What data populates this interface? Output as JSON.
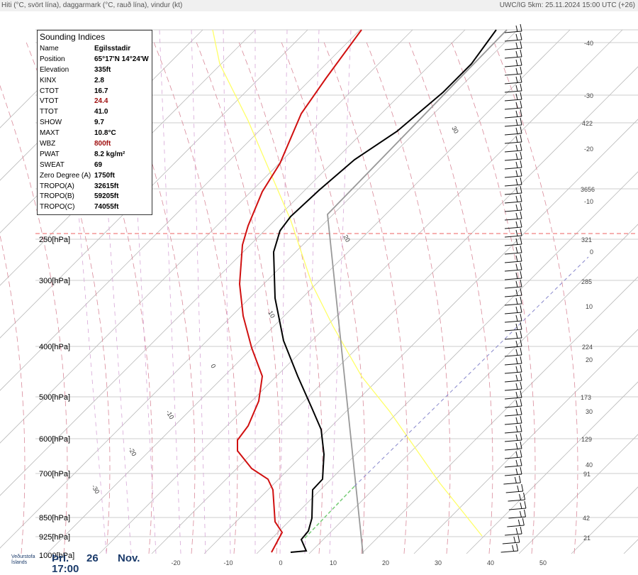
{
  "header": {
    "left": "Hiti (°C, svört lína), daggarmark (°C, rauð lína), vindur (kt)",
    "right": "UWC/IG 5km: 25.11.2024 15:00 UTC (+26)"
  },
  "indices": {
    "title": "Sounding Indices",
    "rows": [
      [
        "Name",
        "Egilsstadir"
      ],
      [
        "Position",
        "65°17'N 14°24'W"
      ],
      [
        "Elevation",
        "335ft"
      ],
      [
        "KINX",
        "2.8"
      ],
      [
        "CTOT",
        "16.7"
      ],
      [
        "VTOT",
        "24.4"
      ],
      [
        "TTOT",
        "41.0"
      ],
      [
        "SHOW",
        "9.7"
      ],
      [
        "MAXT",
        "10.8°C"
      ],
      [
        "WBZ",
        "800ft"
      ],
      [
        "PWAT",
        "8.2 kg/m²"
      ],
      [
        "SWEAT",
        "69"
      ],
      [
        "Zero Degree (A)",
        "1750ft"
      ],
      [
        "TROPO(A)",
        "32615ft"
      ],
      [
        "TROPO(B)",
        "59205ft"
      ],
      [
        "TROPO(C)",
        "74055ft"
      ]
    ]
  },
  "pressure_labels": [
    "250[hPa]",
    "300[hPa]",
    "400[hPa]",
    "500[hPa]",
    "600[hPa]",
    "700[hPa]",
    "850[hPa]",
    "925[hPa]",
    "1000[hPa]"
  ],
  "right_labels": [
    "-40",
    "-30",
    "422",
    "-20",
    "3656",
    "-10",
    "321",
    "0",
    "285",
    "10",
    "224",
    "20",
    "173",
    "30",
    "129",
    "40",
    "91",
    "42",
    "21"
  ],
  "bottom_labels": [
    "-20",
    "-10",
    "0",
    "10",
    "20",
    "30",
    "40",
    "50"
  ],
  "isotherm_labels": [
    "30",
    "20",
    "10",
    "0",
    "-10",
    "-20",
    "-30"
  ],
  "footer": {
    "org": "Veðurstofa Íslands",
    "day": "Þri.",
    "date": "26",
    "month": "Nov.",
    "time": "17:00"
  }
}
